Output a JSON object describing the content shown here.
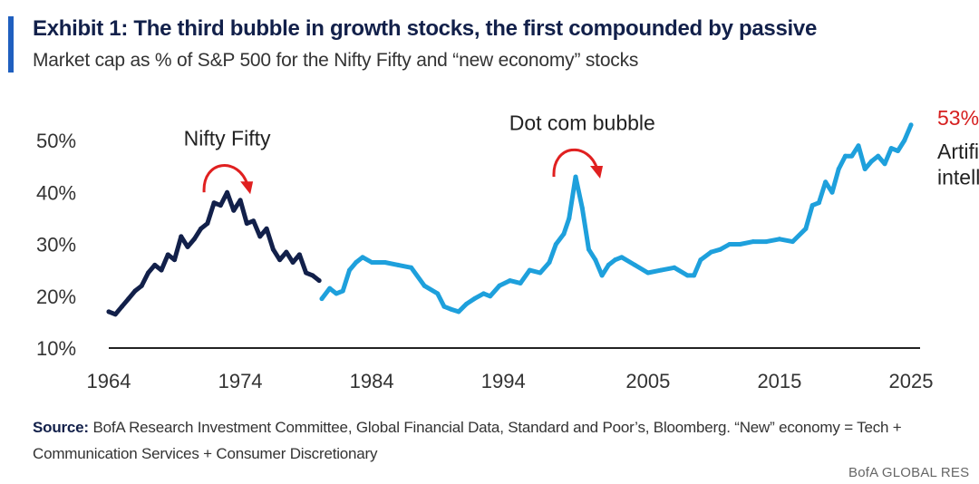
{
  "title": "Exhibit 1: The third bubble in growth stocks, the first compounded by passive",
  "subtitle": "Market cap as % of S&P 500 for the Nifty Fifty and “new economy” stocks",
  "source_label": "Source:",
  "source_text": "BofA Research Investment Committee, Global Financial Data, Standard and Poor’s, Bloomberg. “New” economy = Tech + Communication Services + Consumer Discretionary",
  "brand": "BofA GLOBAL RES",
  "colors": {
    "nifty": "#12204a",
    "new_economy": "#1ea0dc",
    "annotation_arrow": "#e02020",
    "axis": "#222222"
  },
  "chart_data": {
    "type": "line",
    "title": "",
    "xlabel": "",
    "ylabel": "",
    "xlim": [
      1964,
      2025
    ],
    "ylim": [
      10,
      53
    ],
    "y_ticks": [
      {
        "value": 50,
        "label": "50%"
      },
      {
        "value": 40,
        "label": "40%"
      },
      {
        "value": 30,
        "label": "30%"
      },
      {
        "value": 20,
        "label": "20%"
      },
      {
        "value": 10,
        "label": "10%"
      }
    ],
    "x_ticks": [
      {
        "value": 1964,
        "label": "1964"
      },
      {
        "value": 1974,
        "label": "1974"
      },
      {
        "value": 1984,
        "label": "1984"
      },
      {
        "value": 1994,
        "label": "1994"
      },
      {
        "value": 2005,
        "label": "2005"
      },
      {
        "value": 2015,
        "label": "2015"
      },
      {
        "value": 2025,
        "label": "2025"
      }
    ],
    "grid": false,
    "legend": "none",
    "series": [
      {
        "key": "nifty",
        "x": [
          1964,
          1964.5,
          1965,
          1965.5,
          1966,
          1966.5,
          1967,
          1967.5,
          1968,
          1968.5,
          1969,
          1969.5,
          1970,
          1970.5,
          1971,
          1971.5,
          1972,
          1972.5,
          1973,
          1973.5,
          1974,
          1974.5,
          1975,
          1975.5,
          1976,
          1976.5,
          1977,
          1977.5,
          1978,
          1978.5,
          1979,
          1979.5,
          1980
        ],
        "y": [
          17,
          16.5,
          18,
          19.5,
          21,
          22,
          24.5,
          26,
          25,
          28,
          27,
          31.5,
          29.5,
          31,
          33,
          34,
          38,
          37.5,
          40,
          36.5,
          38.5,
          34,
          34.5,
          31.5,
          33,
          29,
          27,
          28.5,
          26.5,
          28,
          24.5,
          24,
          23
        ]
      },
      {
        "key": "new_economy",
        "x": [
          1980.2,
          1980.8,
          1981.3,
          1981.8,
          1982.3,
          1982.8,
          1983.3,
          1984,
          1985,
          1986,
          1987,
          1988,
          1989,
          1989.5,
          1990,
          1990.6,
          1991.2,
          1991.8,
          1992.5,
          1993,
          1993.7,
          1994.5,
          1995.3,
          1996,
          1996.8,
          1997.5,
          1998,
          1998.6,
          1999,
          1999.5,
          2000,
          2000.5,
          2001,
          2001.5,
          2002,
          2002.5,
          2003,
          2004,
          2005,
          2006,
          2007,
          2008,
          2008.5,
          2009,
          2009.8,
          2010.5,
          2011.2,
          2012,
          2013,
          2014,
          2015,
          2016,
          2017,
          2017.5,
          2018,
          2018.5,
          2019,
          2019.5,
          2020,
          2020.5,
          2021,
          2021.5,
          2022,
          2022.5,
          2023,
          2023.5,
          2024,
          2024.5,
          2025
        ],
        "y": [
          19.5,
          21.5,
          20.5,
          21,
          25,
          26.5,
          27.5,
          26.5,
          26.5,
          26,
          25.5,
          22,
          20.5,
          18,
          17.5,
          17,
          18.5,
          19.5,
          20.5,
          20,
          22,
          23,
          22.5,
          25,
          24.5,
          26.5,
          30,
          32,
          35,
          43,
          37,
          29,
          27,
          24,
          26,
          27,
          27.5,
          26,
          24.5,
          25,
          25.5,
          24,
          24,
          27,
          28.5,
          29,
          30,
          30,
          30.5,
          30.5,
          31,
          30.5,
          33,
          37.5,
          38,
          42,
          40,
          44.5,
          47,
          47,
          49,
          44.5,
          46,
          47,
          45.5,
          48.5,
          48,
          50,
          53
        ]
      }
    ],
    "annotations": [
      {
        "text": "Nifty Fifty",
        "x": 1973,
        "y": 49
      },
      {
        "text": "Dot com bubble",
        "x": 2000,
        "y": 52
      },
      {
        "text": "53%",
        "x": 2027,
        "y": 53
      },
      {
        "text": "Artifici",
        "x": 2027,
        "y": 46.5
      },
      {
        "text": "intellige",
        "x": 2027,
        "y": 41.5
      }
    ]
  }
}
